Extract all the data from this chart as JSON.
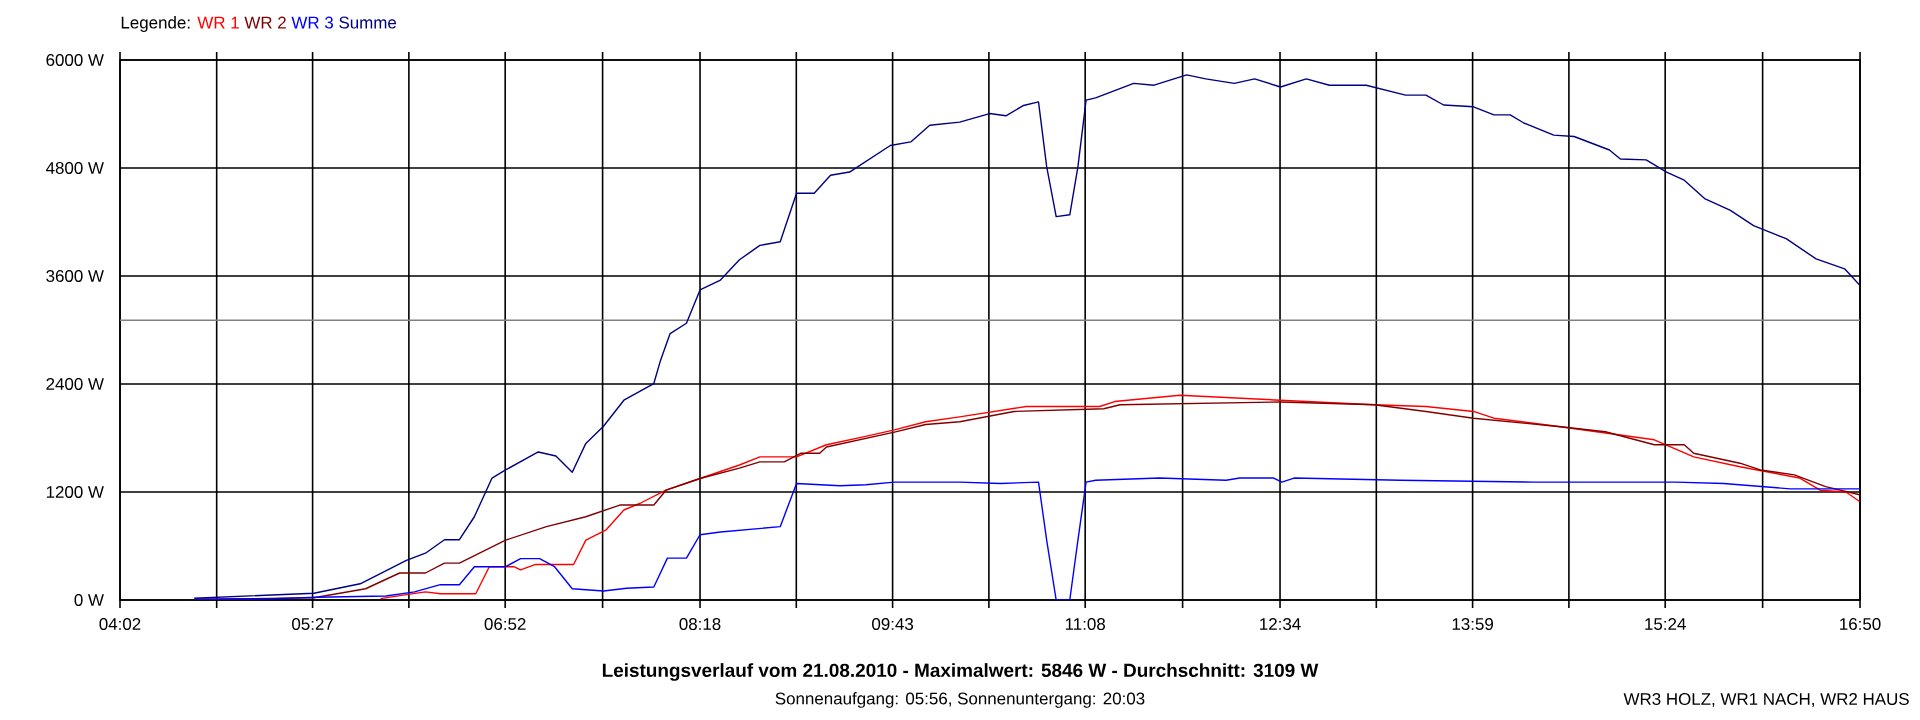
{
  "chart_data": {
    "type": "line",
    "title": "Leistungsverlauf vom 21.08.2010 - Maximalwert: 5846 W - Durchschnitt: 3109 W",
    "subtitle": "Sonnenaufgang: 05:56, Sonnenuntergang: 20:03",
    "annotations": [
      "WR3 HOLZ, WR1 NACH, WR2 HAUS"
    ],
    "legend_title": "Legende:",
    "legend": "top left",
    "grid": true,
    "marker": "none",
    "line_style": "solid",
    "xlim": [
      4.0333,
      16.8333
    ],
    "ylim": [
      0,
      6000
    ],
    "xticks": [
      {
        "value": 4.0333,
        "label": "04:02"
      },
      {
        "value": 4.7444,
        "label": null
      },
      {
        "value": 5.45,
        "label": "05:27"
      },
      {
        "value": 6.1583,
        "label": null
      },
      {
        "value": 6.8667,
        "label": "06:52"
      },
      {
        "value": 7.5833,
        "label": null
      },
      {
        "value": 8.3,
        "label": "08:18"
      },
      {
        "value": 9.0083,
        "label": null
      },
      {
        "value": 9.7167,
        "label": "09:43"
      },
      {
        "value": 10.425,
        "label": null
      },
      {
        "value": 11.1333,
        "label": "11:08"
      },
      {
        "value": 11.85,
        "label": null
      },
      {
        "value": 12.5667,
        "label": "12:34"
      },
      {
        "value": 13.275,
        "label": null
      },
      {
        "value": 13.9833,
        "label": "13:59"
      },
      {
        "value": 14.6917,
        "label": null
      },
      {
        "value": 15.4,
        "label": "15:24"
      },
      {
        "value": 16.1167,
        "label": null
      },
      {
        "value": 16.8333,
        "label": "16:50"
      }
    ],
    "yticks": [
      {
        "value": 0,
        "label": "0 W"
      },
      {
        "value": 1200,
        "label": "1200 W"
      },
      {
        "value": 2400,
        "label": "2400 W"
      },
      {
        "value": 3600,
        "label": "3600 W"
      },
      {
        "value": 4800,
        "label": "4800 W"
      },
      {
        "value": 6000,
        "label": "6000 W"
      }
    ],
    "ref_lines": [
      {
        "axis": "y",
        "value": 3109,
        "color": "#808080"
      }
    ],
    "series": [
      {
        "name": "WR 1",
        "color": "#ff0000",
        "x": [
          5.95,
          6.14,
          6.28,
          6.39,
          6.65,
          6.75,
          6.93,
          6.98,
          7.09,
          7.37,
          7.46,
          7.61,
          7.74,
          7.86,
          8.05,
          8.3,
          8.59,
          8.74,
          9.01,
          9.23,
          9.51,
          9.73,
          9.96,
          10.21,
          10.7,
          11.24,
          11.35,
          11.83,
          12.57,
          13.26,
          13.64,
          13.99,
          14.14,
          14.63,
          15.32,
          15.61,
          15.95,
          16.39,
          16.54,
          16.73,
          16.83
        ],
        "values": [
          15,
          60,
          90,
          70,
          70,
          370,
          370,
          335,
          395,
          395,
          665,
          780,
          1000,
          1075,
          1220,
          1350,
          1500,
          1590,
          1590,
          1725,
          1815,
          1890,
          1980,
          2035,
          2150,
          2150,
          2205,
          2275,
          2220,
          2170,
          2150,
          2095,
          2020,
          1925,
          1780,
          1590,
          1480,
          1355,
          1220,
          1200,
          1095
        ]
      },
      {
        "name": "WR 2",
        "color": "#800000",
        "x": [
          4.58,
          5.46,
          5.84,
          6.09,
          6.28,
          6.42,
          6.53,
          6.87,
          7.17,
          7.46,
          7.71,
          7.96,
          8.05,
          8.3,
          8.59,
          8.74,
          8.92,
          9.04,
          9.18,
          9.23,
          9.73,
          9.96,
          10.21,
          10.61,
          11.27,
          11.39,
          12.57,
          13.26,
          13.64,
          13.99,
          14.63,
          14.96,
          15.32,
          15.54,
          15.61,
          15.95,
          16.1,
          16.35,
          16.58,
          16.83
        ],
        "values": [
          5,
          25,
          125,
          300,
          300,
          410,
          410,
          665,
          815,
          925,
          1055,
          1055,
          1220,
          1350,
          1465,
          1535,
          1535,
          1630,
          1630,
          1700,
          1865,
          1950,
          1980,
          2095,
          2125,
          2170,
          2200,
          2170,
          2095,
          2020,
          1925,
          1870,
          1725,
          1725,
          1630,
          1520,
          1445,
          1390,
          1260,
          1170
        ]
      },
      {
        "name": "WR 3",
        "color": "#0000ff",
        "x": [
          4.58,
          5.17,
          5.48,
          5.99,
          6.2,
          6.39,
          6.53,
          6.64,
          6.87,
          6.98,
          7.12,
          7.23,
          7.36,
          7.59,
          7.76,
          7.96,
          8.06,
          8.2,
          8.3,
          8.45,
          8.89,
          9.01,
          9.33,
          9.52,
          9.73,
          10.21,
          10.51,
          10.79,
          10.85,
          10.92,
          11.02,
          11.08,
          11.14,
          11.21,
          11.68,
          12.17,
          12.27,
          12.52,
          12.58,
          12.67,
          13.45,
          14.43,
          15.48,
          15.83,
          16.32,
          16.83
        ],
        "values": [
          10,
          15,
          30,
          45,
          90,
          170,
          170,
          370,
          370,
          460,
          460,
          370,
          125,
          100,
          130,
          145,
          465,
          465,
          725,
          755,
          815,
          1295,
          1270,
          1280,
          1310,
          1310,
          1295,
          1310,
          665,
          0,
          0,
          665,
          1310,
          1330,
          1355,
          1330,
          1355,
          1355,
          1310,
          1355,
          1330,
          1310,
          1310,
          1295,
          1235,
          1235
        ]
      },
      {
        "name": "Summe",
        "color": "#000080",
        "x": [
          4.58,
          5.46,
          5.8,
          6.14,
          6.28,
          6.42,
          6.53,
          6.64,
          6.77,
          6.87,
          7.11,
          7.24,
          7.36,
          7.46,
          7.59,
          7.74,
          7.96,
          8.01,
          8.08,
          8.2,
          8.3,
          8.45,
          8.59,
          8.74,
          8.89,
          9.01,
          9.14,
          9.26,
          9.4,
          9.7,
          9.85,
          9.99,
          10.21,
          10.43,
          10.55,
          10.68,
          10.79,
          10.85,
          10.92,
          11.02,
          11.08,
          11.14,
          11.21,
          11.49,
          11.64,
          11.88,
          12.02,
          12.23,
          12.38,
          12.57,
          12.76,
          12.93,
          13.2,
          13.49,
          13.64,
          13.77,
          13.99,
          14.14,
          14.26,
          14.36,
          14.58,
          14.73,
          14.99,
          15.07,
          15.26,
          15.41,
          15.54,
          15.69,
          15.88,
          16.05,
          16.29,
          16.51,
          16.72,
          16.83
        ],
        "values": [
          20,
          75,
          180,
          440,
          520,
          670,
          670,
          925,
          1355,
          1445,
          1645,
          1600,
          1420,
          1740,
          1930,
          2220,
          2405,
          2665,
          2960,
          3075,
          3445,
          3555,
          3780,
          3940,
          3980,
          4520,
          4520,
          4720,
          4755,
          5050,
          5090,
          5275,
          5310,
          5405,
          5380,
          5495,
          5535,
          4815,
          4260,
          4280,
          4815,
          5555,
          5580,
          5740,
          5720,
          5835,
          5790,
          5740,
          5790,
          5700,
          5790,
          5720,
          5720,
          5610,
          5610,
          5500,
          5480,
          5390,
          5390,
          5300,
          5165,
          5150,
          5000,
          4900,
          4890,
          4755,
          4665,
          4460,
          4330,
          4160,
          4015,
          3790,
          3680,
          3500
        ]
      }
    ]
  }
}
